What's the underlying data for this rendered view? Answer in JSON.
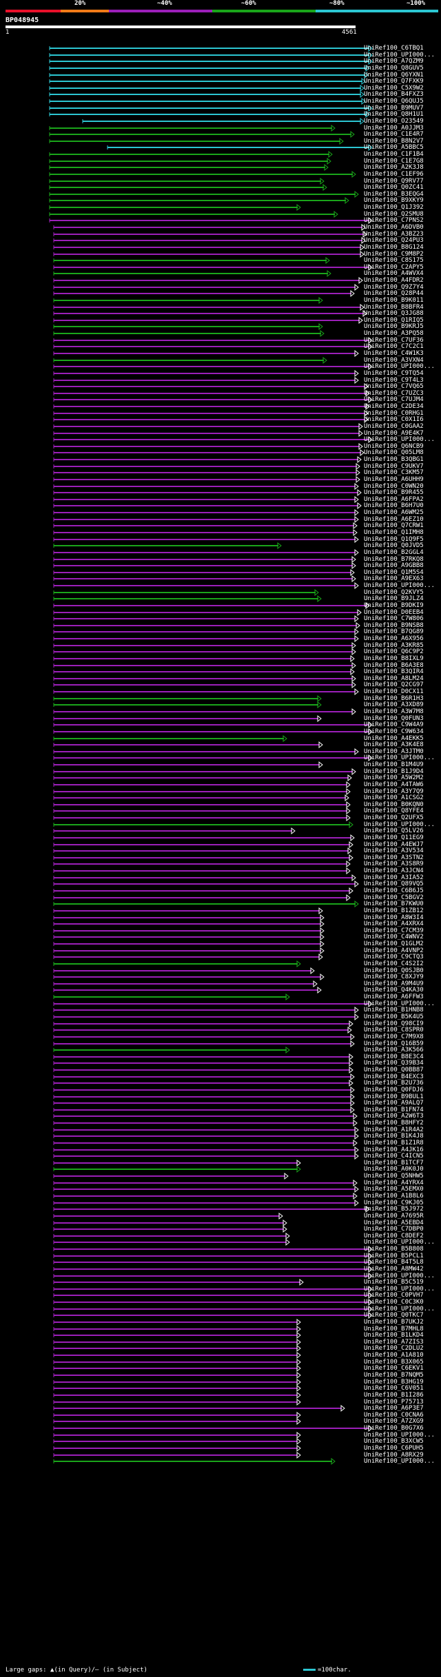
{
  "legend": {
    "labels": [
      "20%",
      "~40%",
      "~60%",
      "~80%",
      "~100%"
    ],
    "colors": [
      "#e8102a",
      "#f07a18",
      "#9b1fb8",
      "#1aa51a",
      "#2cc6d2"
    ]
  },
  "query": {
    "id": "BP048945",
    "start": "1",
    "end": "4561"
  },
  "hits": [
    {
      "label": "UniRef100_C6TBQ1",
      "color": "#2cc6d2"
    },
    {
      "label": "UniRef100_UPI000...",
      "color": "#2cc6d2"
    },
    {
      "label": "UniRef100_A7QZM9",
      "color": "#2cc6d2"
    },
    {
      "label": "UniRef100_Q8GUV5",
      "color": "#2cc6d2"
    },
    {
      "label": "UniRef100_Q6YXN1",
      "color": "#2cc6d2"
    },
    {
      "label": "UniRef100_Q7FXK9",
      "color": "#2cc6d2"
    },
    {
      "label": "UniRef100_C5X9W2",
      "color": "#2cc6d2"
    },
    {
      "label": "UniRef100_B4FXZ3",
      "color": "#2cc6d2"
    },
    {
      "label": "UniRef100_Q6QUJ5",
      "color": "#2cc6d2"
    },
    {
      "label": "UniRef100_B9MUV7",
      "color": "#2cc6d2"
    },
    {
      "label": "UniRef100_Q8H1U1",
      "color": "#2cc6d2"
    },
    {
      "label": "UniRef100_O23549",
      "color": "#2cc6d2"
    },
    {
      "label": "UniRef100_A0JJM3",
      "color": "#1aa51a"
    },
    {
      "label": "UniRef100_C1E4R7",
      "color": "#1aa51a"
    },
    {
      "label": "UniRef100_B8N2V7",
      "color": "#1aa51a"
    },
    {
      "label": "UniRef100_A5BBC5",
      "color": "#2cc6d2"
    },
    {
      "label": "UniRef100_C1F1B4",
      "color": "#1aa51a"
    },
    {
      "label": "UniRef100_C1E7G8",
      "color": "#1aa51a"
    },
    {
      "label": "UniRef100_A2K3J8",
      "color": "#1aa51a"
    },
    {
      "label": "UniRef100_C1EF96",
      "color": "#1aa51a"
    },
    {
      "label": "UniRef100_Q9RV77",
      "color": "#1aa51a"
    },
    {
      "label": "UniRef100_Q0ZC41",
      "color": "#1aa51a"
    },
    {
      "label": "UniRef100_B3EQG4",
      "color": "#1aa51a"
    },
    {
      "label": "UniRef100_B9XKY9",
      "color": "#1aa51a"
    },
    {
      "label": "UniRef100_Q1J392",
      "color": "#1aa51a"
    },
    {
      "label": "UniRef100_Q2SMU8",
      "color": "#1aa51a"
    },
    {
      "label": "UniRef100_C7PNS2",
      "color": "#9b1fb8"
    },
    {
      "label": "UniRef100_A6DVB0",
      "color": "#9b1fb8"
    },
    {
      "label": "UniRef100_A3BZ23",
      "color": "#9b1fb8"
    },
    {
      "label": "UniRef100_Q24PU3",
      "color": "#9b1fb8"
    },
    {
      "label": "UniRef100_B8G124",
      "color": "#9b1fb8"
    },
    {
      "label": "UniRef100_C9M8P2",
      "color": "#9b1fb8"
    },
    {
      "label": "UniRef100_C8S175",
      "color": "#1aa51a"
    },
    {
      "label": "UniRef100_C2APY5",
      "color": "#9b1fb8"
    },
    {
      "label": "UniRef100_A4WVX4",
      "color": "#1aa51a"
    },
    {
      "label": "UniRef100_A4FDR2",
      "color": "#9b1fb8"
    },
    {
      "label": "UniRef100_Q9Z7Y4",
      "color": "#9b1fb8"
    },
    {
      "label": "UniRef100_Q28P44",
      "color": "#9b1fb8"
    },
    {
      "label": "UniRef100_B9K011",
      "color": "#1aa51a"
    },
    {
      "label": "UniRef100_B8BFR4",
      "color": "#9b1fb8"
    },
    {
      "label": "UniRef100_Q3JG88",
      "color": "#9b1fb8"
    },
    {
      "label": "UniRef100_Q1RIQ5",
      "color": "#9b1fb8"
    },
    {
      "label": "UniRef100_B9KRJ5",
      "color": "#1aa51a"
    },
    {
      "label": "UniRef100_A3PQ58",
      "color": "#1aa51a"
    },
    {
      "label": "UniRef100_C7UF36",
      "color": "#9b1fb8"
    },
    {
      "label": "UniRef100_C7C2C1",
      "color": "#9b1fb8"
    },
    {
      "label": "UniRef100_C4W1K3",
      "color": "#9b1fb8"
    },
    {
      "label": "UniRef100_A3VXN4",
      "color": "#1aa51a"
    },
    {
      "label": "UniRef100_UPI000...",
      "color": "#9b1fb8"
    },
    {
      "label": "UniRef100_C9TQ54",
      "color": "#9b1fb8"
    },
    {
      "label": "UniRef100_C9T4L3",
      "color": "#9b1fb8"
    },
    {
      "label": "UniRef100_C7VQ65",
      "color": "#9b1fb8"
    },
    {
      "label": "UniRef100_C7UZC3",
      "color": "#9b1fb8"
    },
    {
      "label": "UniRef100_C7UJM4",
      "color": "#9b1fb8"
    },
    {
      "label": "UniRef100_C2DE34",
      "color": "#9b1fb8"
    },
    {
      "label": "UniRef100_C0RHG1",
      "color": "#9b1fb8"
    },
    {
      "label": "UniRef100_C0X1I6",
      "color": "#9b1fb8"
    },
    {
      "label": "UniRef100_C0GAA2",
      "color": "#9b1fb8"
    },
    {
      "label": "UniRef100_A9E4K7",
      "color": "#9b1fb8"
    },
    {
      "label": "UniRef100_UPI000...",
      "color": "#9b1fb8"
    },
    {
      "label": "UniRef100_Q6NCB9",
      "color": "#9b1fb8"
    },
    {
      "label": "UniRef100_Q05LM8",
      "color": "#9b1fb8"
    },
    {
      "label": "UniRef100_B3QBG1",
      "color": "#9b1fb8"
    },
    {
      "label": "UniRef100_C9UKV7",
      "color": "#9b1fb8"
    },
    {
      "label": "UniRef100_C3KM57",
      "color": "#9b1fb8"
    },
    {
      "label": "UniRef100_A6UHH9",
      "color": "#9b1fb8"
    },
    {
      "label": "UniRef100_C0WN20",
      "color": "#9b1fb8"
    },
    {
      "label": "UniRef100_B9R455",
      "color": "#9b1fb8"
    },
    {
      "label": "UniRef100_A6FPA2",
      "color": "#9b1fb8"
    },
    {
      "label": "UniRef100_B6H7U0",
      "color": "#9b1fb8"
    },
    {
      "label": "UniRef100_A6WM25",
      "color": "#9b1fb8"
    },
    {
      "label": "UniRef100_A6EZ10",
      "color": "#9b1fb8"
    },
    {
      "label": "UniRef100_Q7CRW1",
      "color": "#9b1fb8"
    },
    {
      "label": "UniRef100_Q1IMH8",
      "color": "#9b1fb8"
    },
    {
      "label": "UniRef100_Q1Q9F5",
      "color": "#9b1fb8"
    },
    {
      "label": "UniRef100_Q0JVD5",
      "color": "#1aa51a"
    },
    {
      "label": "UniRef100_B2GGL4",
      "color": "#9b1fb8"
    },
    {
      "label": "UniRef100_B7RKQ8",
      "color": "#9b1fb8"
    },
    {
      "label": "UniRef100_A9GBB8",
      "color": "#9b1fb8"
    },
    {
      "label": "UniRef100_Q1M5S4",
      "color": "#9b1fb8"
    },
    {
      "label": "UniRef100_A9EX63",
      "color": "#9b1fb8"
    },
    {
      "label": "UniRef100_UPI000...",
      "color": "#9b1fb8"
    },
    {
      "label": "UniRef100_Q2KVY5",
      "color": "#1aa51a"
    },
    {
      "label": "UniRef100_B9JLZ4",
      "color": "#1aa51a"
    },
    {
      "label": "UniRef100_B9DKI9",
      "color": "#9b1fb8"
    },
    {
      "label": "UniRef100_D0EEB4",
      "color": "#9b1fb8"
    },
    {
      "label": "UniRef100_C7W806",
      "color": "#9b1fb8"
    },
    {
      "label": "UniRef100_B9NSB8",
      "color": "#9b1fb8"
    },
    {
      "label": "UniRef100_B7QG89",
      "color": "#9b1fb8"
    },
    {
      "label": "UniRef100_A6X956",
      "color": "#9b1fb8"
    },
    {
      "label": "UniRef100_A3KR85",
      "color": "#9b1fb8"
    },
    {
      "label": "UniRef100_Q6C9P2",
      "color": "#9b1fb8"
    },
    {
      "label": "UniRef100_B8IXL9",
      "color": "#9b1fb8"
    },
    {
      "label": "UniRef100_B6A3E8",
      "color": "#9b1fb8"
    },
    {
      "label": "UniRef100_B3QIR4",
      "color": "#9b1fb8"
    },
    {
      "label": "UniRef100_A8LM24",
      "color": "#9b1fb8"
    },
    {
      "label": "UniRef100_Q2CG97",
      "color": "#9b1fb8"
    },
    {
      "label": "UniRef100_D0CX11",
      "color": "#9b1fb8"
    },
    {
      "label": "UniRef100_B6R1H3",
      "color": "#1aa51a"
    },
    {
      "label": "UniRef100_A3XD89",
      "color": "#1aa51a"
    },
    {
      "label": "UniRef100_A3W7M8",
      "color": "#9b1fb8"
    },
    {
      "label": "UniRef100_Q0FUN3",
      "color": "#9b1fb8"
    },
    {
      "label": "UniRef100_C9W4A9",
      "color": "#9b1fb8"
    },
    {
      "label": "UniRef100_C9W634",
      "color": "#9b1fb8"
    },
    {
      "label": "UniRef100_A4EKK5",
      "color": "#1aa51a"
    },
    {
      "label": "UniRef100_A3K4E8",
      "color": "#9b1fb8"
    },
    {
      "label": "UniRef100_A3JTM0",
      "color": "#9b1fb8"
    },
    {
      "label": "UniRef100_UPI000...",
      "color": "#9b1fb8"
    },
    {
      "label": "UniRef100_B1M4U9",
      "color": "#9b1fb8"
    },
    {
      "label": "UniRef100_B1J9D4",
      "color": "#9b1fb8"
    },
    {
      "label": "UniRef100_A5W2M2",
      "color": "#9b1fb8"
    },
    {
      "label": "UniRef100_A4TAW6",
      "color": "#9b1fb8"
    },
    {
      "label": "UniRef100_A3Y7Q9",
      "color": "#9b1fb8"
    },
    {
      "label": "UniRef100_A1CSG2",
      "color": "#9b1fb8"
    },
    {
      "label": "UniRef100_B0KQN0",
      "color": "#9b1fb8"
    },
    {
      "label": "UniRef100_Q8YFE4",
      "color": "#9b1fb8"
    },
    {
      "label": "UniRef100_Q2UFX5",
      "color": "#9b1fb8"
    },
    {
      "label": "UniRef100_UPI000...",
      "color": "#1aa51a"
    },
    {
      "label": "UniRef100_Q5LV26",
      "color": "#9b1fb8"
    },
    {
      "label": "UniRef100_Q11EG9",
      "color": "#9b1fb8"
    },
    {
      "label": "UniRef100_A4EWJ7",
      "color": "#9b1fb8"
    },
    {
      "label": "UniRef100_A3V534",
      "color": "#9b1fb8"
    },
    {
      "label": "UniRef100_A3STN2",
      "color": "#9b1fb8"
    },
    {
      "label": "UniRef100_A3S8R9",
      "color": "#9b1fb8"
    },
    {
      "label": "UniRef100_A3JCN4",
      "color": "#9b1fb8"
    },
    {
      "label": "UniRef100_A3IA52",
      "color": "#9b1fb8"
    },
    {
      "label": "UniRef100_Q89VQ5",
      "color": "#9b1fb8"
    },
    {
      "label": "UniRef100_C6B6J5",
      "color": "#9b1fb8"
    },
    {
      "label": "UniRef100_C5BGV2",
      "color": "#9b1fb8"
    },
    {
      "label": "UniRef100_B7KWU0",
      "color": "#1aa51a"
    },
    {
      "label": "UniRef100_B1ZB12",
      "color": "#9b1fb8"
    },
    {
      "label": "UniRef100_A8W3I4",
      "color": "#9b1fb8"
    },
    {
      "label": "UniRef100_A4XRX4",
      "color": "#9b1fb8"
    },
    {
      "label": "UniRef100_C7CM39",
      "color": "#9b1fb8"
    },
    {
      "label": "UniRef100_C4WNV2",
      "color": "#9b1fb8"
    },
    {
      "label": "UniRef100_Q1GLM2",
      "color": "#9b1fb8"
    },
    {
      "label": "UniRef100_A4VNP2",
      "color": "#9b1fb8"
    },
    {
      "label": "UniRef100_C9CTQ3",
      "color": "#9b1fb8"
    },
    {
      "label": "UniRef100_C4S2I2",
      "color": "#1aa51a"
    },
    {
      "label": "UniRef100_Q0SJB0",
      "color": "#9b1fb8"
    },
    {
      "label": "UniRef100_C8XJY9",
      "color": "#9b1fb8"
    },
    {
      "label": "UniRef100_A9M4U9",
      "color": "#9b1fb8"
    },
    {
      "label": "UniRef100_Q4KA30",
      "color": "#9b1fb8"
    },
    {
      "label": "UniRef100_A6FFW3",
      "color": "#1aa51a"
    },
    {
      "label": "UniRef100_UPI000...",
      "color": "#9b1fb8"
    },
    {
      "label": "UniRef100_B1HNB8",
      "color": "#9b1fb8"
    },
    {
      "label": "UniRef100_B5K4U5",
      "color": "#9b1fb8"
    },
    {
      "label": "UniRef100_Q98CI9",
      "color": "#9b1fb8"
    },
    {
      "label": "UniRef100_C8SPR0",
      "color": "#9b1fb8"
    },
    {
      "label": "UniRef100_C7M9X8",
      "color": "#9b1fb8"
    },
    {
      "label": "UniRef100_Q16B59",
      "color": "#9b1fb8"
    },
    {
      "label": "UniRef100_A3K566",
      "color": "#1aa51a"
    },
    {
      "label": "UniRef100_B8E3C4",
      "color": "#9b1fb8"
    },
    {
      "label": "UniRef100_Q39B34",
      "color": "#9b1fb8"
    },
    {
      "label": "UniRef100_Q0BB87",
      "color": "#9b1fb8"
    },
    {
      "label": "UniRef100_B4EXC3",
      "color": "#9b1fb8"
    },
    {
      "label": "UniRef100_B2U736",
      "color": "#9b1fb8"
    },
    {
      "label": "UniRef100_Q0FDJ6",
      "color": "#9b1fb8"
    },
    {
      "label": "UniRef100_B9BUL1",
      "color": "#9b1fb8"
    },
    {
      "label": "UniRef100_A9ALQ7",
      "color": "#9b1fb8"
    },
    {
      "label": "UniRef100_B1FN74",
      "color": "#9b1fb8"
    },
    {
      "label": "UniRef100_A2W6T3",
      "color": "#9b1fb8"
    },
    {
      "label": "UniRef100_B8HFY2",
      "color": "#9b1fb8"
    },
    {
      "label": "UniRef100_A1R4A2",
      "color": "#9b1fb8"
    },
    {
      "label": "UniRef100_B1K4J8",
      "color": "#9b1fb8"
    },
    {
      "label": "UniRef100_B1Z1R8",
      "color": "#9b1fb8"
    },
    {
      "label": "UniRef100_A4JK16",
      "color": "#9b1fb8"
    },
    {
      "label": "UniRef100_C4ICN5",
      "color": "#9b1fb8"
    },
    {
      "label": "UniRef100_B1TCF7",
      "color": "#9b1fb8"
    },
    {
      "label": "UniRef100_A0K0J0",
      "color": "#1aa51a"
    },
    {
      "label": "UniRef100_Q5NHW5",
      "color": "#9b1fb8"
    },
    {
      "label": "UniRef100_A4YRX4",
      "color": "#9b1fb8"
    },
    {
      "label": "UniRef100_A5EMX0",
      "color": "#9b1fb8"
    },
    {
      "label": "UniRef100_A1B8L6",
      "color": "#9b1fb8"
    },
    {
      "label": "UniRef100_C9KJ05",
      "color": "#9b1fb8"
    },
    {
      "label": "UniRef100_B5J972",
      "color": "#9b1fb8"
    },
    {
      "label": "UniRef100_A7695R",
      "color": "#9b1fb8"
    },
    {
      "label": "UniRef100_A5EBD4",
      "color": "#9b1fb8"
    },
    {
      "label": "UniRef100_C7DBP0",
      "color": "#9b1fb8"
    },
    {
      "label": "UniRef100_C8DEF2",
      "color": "#9b1fb8"
    },
    {
      "label": "UniRef100_UPI000...",
      "color": "#9b1fb8"
    },
    {
      "label": "UniRef100_B5B808",
      "color": "#9b1fb8"
    },
    {
      "label": "UniRef100_B5PCL1",
      "color": "#9b1fb8"
    },
    {
      "label": "UniRef100_B4T5L8",
      "color": "#9b1fb8"
    },
    {
      "label": "UniRef100_A8MW42",
      "color": "#9b1fb8"
    },
    {
      "label": "UniRef100_UPI000...",
      "color": "#9b1fb8"
    },
    {
      "label": "UniRef100_B5C519",
      "color": "#9b1fb8"
    },
    {
      "label": "UniRef100_UPI000...",
      "color": "#9b1fb8"
    },
    {
      "label": "UniRef100_C0PVH7",
      "color": "#9b1fb8"
    },
    {
      "label": "UniRef100_C0C3K0",
      "color": "#9b1fb8"
    },
    {
      "label": "UniRef100_UPI000...",
      "color": "#9b1fb8"
    },
    {
      "label": "UniRef100_Q0TKC7",
      "color": "#9b1fb8"
    },
    {
      "label": "UniRef100_B7UKJ2",
      "color": "#9b1fb8"
    },
    {
      "label": "UniRef100_B7MHL8",
      "color": "#9b1fb8"
    },
    {
      "label": "UniRef100_B1LKD4",
      "color": "#9b1fb8"
    },
    {
      "label": "UniRef100_A7ZIS3",
      "color": "#9b1fb8"
    },
    {
      "label": "UniRef100_C2DLU2",
      "color": "#9b1fb8"
    },
    {
      "label": "UniRef100_A1A810",
      "color": "#9b1fb8"
    },
    {
      "label": "UniRef100_B3X065",
      "color": "#9b1fb8"
    },
    {
      "label": "UniRef100_C6EKV1",
      "color": "#9b1fb8"
    },
    {
      "label": "UniRef100_B7NQM5",
      "color": "#9b1fb8"
    },
    {
      "label": "UniRef100_B3HG19",
      "color": "#9b1fb8"
    },
    {
      "label": "UniRef100_C6V051",
      "color": "#9b1fb8"
    },
    {
      "label": "UniRef100_B1I286",
      "color": "#9b1fb8"
    },
    {
      "label": "UniRef100_P75713",
      "color": "#9b1fb8"
    },
    {
      "label": "UniRef100_A6P3E7",
      "color": "#9b1fb8"
    },
    {
      "label": "UniRef100_C0CNA6",
      "color": "#9b1fb8"
    },
    {
      "label": "UniRef100_A7ZXG9",
      "color": "#9b1fb8"
    },
    {
      "label": "UniRef100_B0G7X6",
      "color": "#9b1fb8"
    },
    {
      "label": "UniRef100_UPI000...",
      "color": "#9b1fb8"
    },
    {
      "label": "UniRef100_B3XCW5",
      "color": "#9b1fb8"
    },
    {
      "label": "UniRef100_C6PUH5",
      "color": "#9b1fb8"
    },
    {
      "label": "UniRef100_A8RX29",
      "color": "#9b1fb8"
    },
    {
      "label": "UniRef100_UPI000...",
      "color": "#1aa51a"
    }
  ],
  "footer": {
    "gaps_text": "Large gaps: ▲(in Query)/– (in Subject)",
    "scale_text": "=100char."
  }
}
